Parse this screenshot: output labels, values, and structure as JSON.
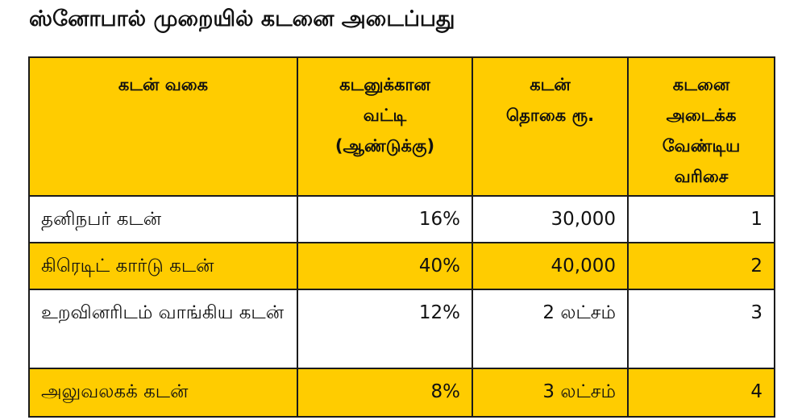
{
  "title": "ஸ்னோபால் முறையில் கடனை அடைப்பது",
  "colors": {
    "highlight": "#FFCC00",
    "plain": "#FFFFFF",
    "border": "#1B1B1B",
    "text": "#111111"
  },
  "table": {
    "headers": [
      "கடன் வகை",
      "கடனுக்கான\nவட்டி\n(ஆண்டுக்கு)",
      "கடன்\nதொகை ரூ.",
      "கடனை\nஅடைக்க\nவேண்டிய\nவரிசை"
    ],
    "rows": [
      {
        "type": "தனிநபர் கடன்",
        "interest": "16%",
        "amount": "30,000",
        "order": "1",
        "highlight": false
      },
      {
        "type": "கிரெடிட் கார்டு கடன்",
        "interest": "40%",
        "amount": "40,000",
        "order": "2",
        "highlight": true
      },
      {
        "type": "உறவினரிடம் வாங்கிய கடன்",
        "interest": "12%",
        "amount": "2 லட்சம்",
        "order": "3",
        "highlight": false
      },
      {
        "type": "அலுவலகக் கடன்",
        "interest": "8%",
        "amount": "3 லட்சம்",
        "order": "4",
        "highlight": true
      }
    ]
  }
}
